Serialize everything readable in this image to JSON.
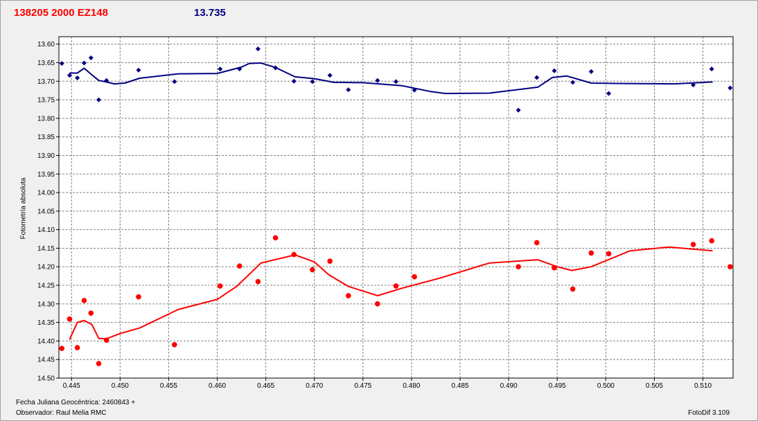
{
  "title": {
    "object": "138205 2000 EZ148",
    "magnitude": "13.735"
  },
  "footer": {
    "fecha": "Fecha Juliana Geocéntrica: 2460843 +",
    "observador": "Observador: Raul Melia RMC",
    "software": "FotoDif 3.109"
  },
  "colors": {
    "object_series": "#ff0000",
    "comparison_series": "#000080",
    "grid": "#808080"
  },
  "chart_data": {
    "type": "scatter",
    "title": "",
    "xlabel": "",
    "ylabel": "Fotometría absoluta",
    "xlim": [
      0.4437,
      0.5131
    ],
    "ylim": [
      13.58,
      14.5
    ],
    "y_inverted": true,
    "grid": true,
    "x_ticks": [
      0.445,
      0.45,
      0.455,
      0.46,
      0.465,
      0.47,
      0.475,
      0.48,
      0.485,
      0.49,
      0.495,
      0.5,
      0.505,
      0.51
    ],
    "x_tick_labels": [
      "0.445",
      "0.450",
      "0.455",
      "0.460",
      "0.465",
      "0.470",
      "0.475",
      "0.480",
      "0.485",
      "0.490",
      "0.495",
      "0.500",
      "0.505",
      "0.510"
    ],
    "y_ticks": [
      13.6,
      13.65,
      13.7,
      13.75,
      13.8,
      13.85,
      13.9,
      13.95,
      14.0,
      14.05,
      14.1,
      14.15,
      14.2,
      14.25,
      14.3,
      14.35,
      14.4,
      14.45,
      14.5
    ],
    "y_tick_labels": [
      "13.60",
      "13.65",
      "13.70",
      "13.75",
      "13.80",
      "13.85",
      "13.90",
      "13.95",
      "14.00",
      "14.05",
      "14.10",
      "14.15",
      "14.20",
      "14.25",
      "14.30",
      "14.35",
      "14.40",
      "14.45",
      "14.50"
    ],
    "series": [
      {
        "color": "#000080",
        "marker": "diamond",
        "points": [
          [
            0.444,
            13.652
          ],
          [
            0.4448,
            13.684
          ],
          [
            0.4456,
            13.691
          ],
          [
            0.4463,
            13.651
          ],
          [
            0.447,
            13.637
          ],
          [
            0.4478,
            13.75
          ],
          [
            0.4486,
            13.698
          ],
          [
            0.4519,
            13.67
          ],
          [
            0.4556,
            13.701
          ],
          [
            0.4603,
            13.667
          ],
          [
            0.4623,
            13.667
          ],
          [
            0.4642,
            13.613
          ],
          [
            0.466,
            13.664
          ],
          [
            0.4679,
            13.7
          ],
          [
            0.4698,
            13.701
          ],
          [
            0.4716,
            13.684
          ],
          [
            0.4735,
            13.723
          ],
          [
            0.4765,
            13.698
          ],
          [
            0.4784,
            13.701
          ],
          [
            0.4803,
            13.724
          ],
          [
            0.491,
            13.778
          ],
          [
            0.4929,
            13.69
          ],
          [
            0.4947,
            13.672
          ],
          [
            0.4966,
            13.703
          ],
          [
            0.4985,
            13.674
          ],
          [
            0.5003,
            13.733
          ],
          [
            0.509,
            13.71
          ],
          [
            0.5109,
            13.667
          ],
          [
            0.5128,
            13.718
          ]
        ],
        "trend": [
          [
            0.4448,
            13.678
          ],
          [
            0.4456,
            13.678
          ],
          [
            0.4463,
            13.665
          ],
          [
            0.4471,
            13.683
          ],
          [
            0.4478,
            13.698
          ],
          [
            0.4486,
            13.702
          ],
          [
            0.4494,
            13.707
          ],
          [
            0.4505,
            13.705
          ],
          [
            0.452,
            13.692
          ],
          [
            0.456,
            13.68
          ],
          [
            0.46,
            13.679
          ],
          [
            0.4625,
            13.662
          ],
          [
            0.4633,
            13.652
          ],
          [
            0.4645,
            13.651
          ],
          [
            0.466,
            13.663
          ],
          [
            0.468,
            13.688
          ],
          [
            0.47,
            13.693
          ],
          [
            0.472,
            13.703
          ],
          [
            0.475,
            13.704
          ],
          [
            0.479,
            13.712
          ],
          [
            0.482,
            13.728
          ],
          [
            0.4835,
            13.733
          ],
          [
            0.488,
            13.732
          ],
          [
            0.493,
            13.716
          ],
          [
            0.4945,
            13.69
          ],
          [
            0.496,
            13.686
          ],
          [
            0.4985,
            13.705
          ],
          [
            0.501,
            13.706
          ],
          [
            0.507,
            13.707
          ],
          [
            0.511,
            13.702
          ]
        ]
      },
      {
        "color": "#ff0000",
        "marker": "circle",
        "points": [
          [
            0.444,
            14.42
          ],
          [
            0.4448,
            14.341
          ],
          [
            0.4456,
            14.418
          ],
          [
            0.4463,
            14.291
          ],
          [
            0.447,
            14.325
          ],
          [
            0.4478,
            14.461
          ],
          [
            0.4486,
            14.398
          ],
          [
            0.4519,
            14.281
          ],
          [
            0.4556,
            14.41
          ],
          [
            0.4603,
            14.252
          ],
          [
            0.4623,
            14.198
          ],
          [
            0.4642,
            14.24
          ],
          [
            0.466,
            14.122
          ],
          [
            0.4679,
            14.167
          ],
          [
            0.4698,
            14.208
          ],
          [
            0.4716,
            14.185
          ],
          [
            0.4735,
            14.278
          ],
          [
            0.4765,
            14.3
          ],
          [
            0.4784,
            14.252
          ],
          [
            0.4803,
            14.227
          ],
          [
            0.491,
            14.2
          ],
          [
            0.4929,
            14.135
          ],
          [
            0.4947,
            14.203
          ],
          [
            0.4966,
            14.26
          ],
          [
            0.4985,
            14.163
          ],
          [
            0.5003,
            14.165
          ],
          [
            0.509,
            14.14
          ],
          [
            0.5109,
            14.13
          ],
          [
            0.5128,
            14.2
          ]
        ],
        "trend": [
          [
            0.4448,
            14.396
          ],
          [
            0.4456,
            14.35
          ],
          [
            0.4463,
            14.345
          ],
          [
            0.4471,
            14.356
          ],
          [
            0.4478,
            14.393
          ],
          [
            0.4486,
            14.394
          ],
          [
            0.45,
            14.38
          ],
          [
            0.452,
            14.365
          ],
          [
            0.456,
            14.315
          ],
          [
            0.46,
            14.288
          ],
          [
            0.462,
            14.253
          ],
          [
            0.4645,
            14.19
          ],
          [
            0.468,
            14.168
          ],
          [
            0.47,
            14.187
          ],
          [
            0.4715,
            14.222
          ],
          [
            0.4735,
            14.253
          ],
          [
            0.4765,
            14.278
          ],
          [
            0.479,
            14.258
          ],
          [
            0.483,
            14.23
          ],
          [
            0.488,
            14.19
          ],
          [
            0.493,
            14.181
          ],
          [
            0.495,
            14.2
          ],
          [
            0.4965,
            14.21
          ],
          [
            0.4985,
            14.2
          ],
          [
            0.5025,
            14.157
          ],
          [
            0.5065,
            14.147
          ],
          [
            0.511,
            14.157
          ]
        ]
      }
    ]
  }
}
